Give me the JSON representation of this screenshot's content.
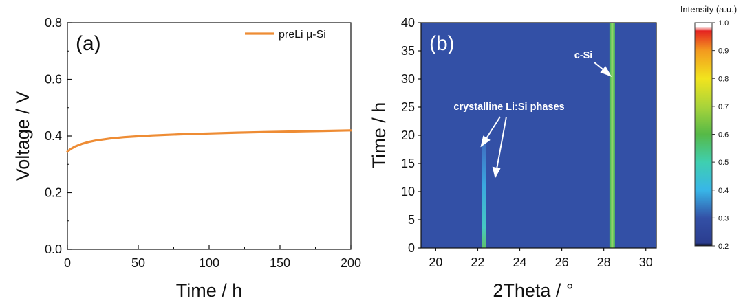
{
  "chart_data": [
    {
      "type": "line",
      "panel_label": "(a)",
      "xlabel": "Time / h",
      "ylabel": "Voltage / V",
      "xlim": [
        0,
        200
      ],
      "ylim": [
        0.0,
        0.8
      ],
      "xticks": [
        "0",
        "50",
        "100",
        "150",
        "200"
      ],
      "yticks": [
        "0.0",
        "0.2",
        "0.4",
        "0.6",
        "0.8"
      ],
      "legend": "top-right",
      "series": [
        {
          "name": "preLi μ-Si",
          "color": "#ee8c34",
          "x": [
            0,
            2,
            5,
            10,
            15,
            20,
            30,
            40,
            50,
            60,
            80,
            100,
            120,
            150,
            180,
            200
          ],
          "y": [
            0.345,
            0.353,
            0.362,
            0.372,
            0.379,
            0.384,
            0.391,
            0.396,
            0.399,
            0.402,
            0.406,
            0.409,
            0.412,
            0.415,
            0.418,
            0.42
          ]
        }
      ]
    },
    {
      "type": "heatmap",
      "panel_label": "(b)",
      "xlabel": "2Theta / °",
      "ylabel": "Time / h",
      "xlim": [
        19.3,
        30.5
      ],
      "ylim": [
        0,
        40
      ],
      "xticks": [
        "20",
        "22",
        "24",
        "26",
        "28",
        "30"
      ],
      "yticks": [
        "0",
        "5",
        "10",
        "15",
        "20",
        "25",
        "30",
        "35",
        "40"
      ],
      "background_intensity": 0.3,
      "features": [
        {
          "name": "Li:Si peak",
          "two_theta": 22.3,
          "t_start": 0,
          "t_end": 18.5,
          "intensity": 0.5
        },
        {
          "name": "c-Si peak",
          "two_theta": 28.4,
          "t_start": 0,
          "t_end": 40,
          "intensity": 0.58
        }
      ],
      "annotations": [
        {
          "text": "crystalline Li:Si phases",
          "two_theta": 24.5,
          "time": 25.5
        },
        {
          "text": "c-Si",
          "two_theta": 27.7,
          "time": 34
        }
      ],
      "colorbar": {
        "title": "Intensity (a.u.)",
        "min": 0.2,
        "max": 1.0,
        "ticks": [
          "0.2",
          "0.3",
          "0.4",
          "0.5",
          "0.6",
          "0.7",
          "0.8",
          "0.9",
          "1.0"
        ],
        "stops": [
          {
            "v": 0.2,
            "color": "#000000"
          },
          {
            "v": 0.21,
            "color": "#2b3d8f"
          },
          {
            "v": 0.3,
            "color": "#3350a6"
          },
          {
            "v": 0.4,
            "color": "#38b6e8"
          },
          {
            "v": 0.5,
            "color": "#3fcfb0"
          },
          {
            "v": 0.6,
            "color": "#56b947"
          },
          {
            "v": 0.7,
            "color": "#a9d43a"
          },
          {
            "v": 0.8,
            "color": "#f2e41e"
          },
          {
            "v": 0.9,
            "color": "#f39a1f"
          },
          {
            "v": 0.97,
            "color": "#e52421"
          },
          {
            "v": 0.985,
            "color": "#ffffff"
          },
          {
            "v": 1.0,
            "color": "#ffffff"
          }
        ]
      }
    }
  ]
}
